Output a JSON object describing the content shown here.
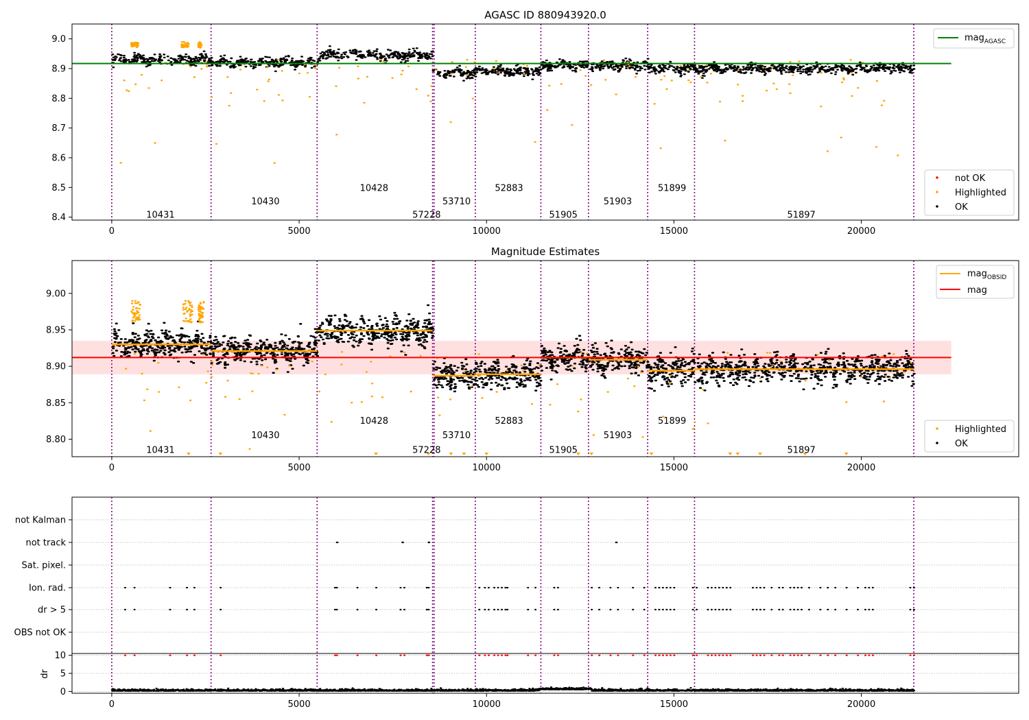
{
  "chart_data": [
    {
      "id": "top",
      "type": "scatter",
      "title": "AGASC ID 880943920.0",
      "xlim": [
        -1060,
        24200
      ],
      "ylim": [
        8.39,
        9.05
      ],
      "xticks": [
        0,
        5000,
        10000,
        15000,
        20000
      ],
      "yticks": [
        8.4,
        8.5,
        8.6,
        8.7,
        8.8,
        8.9,
        9.0
      ],
      "obs_boundaries": [
        0,
        2650,
        5480,
        8560,
        8600,
        9700,
        11450,
        12720,
        14300,
        15550,
        21400
      ],
      "obs_labels": [
        {
          "text": "10431",
          "x": 1300,
          "y": 8.41
        },
        {
          "text": "10430",
          "x": 4100,
          "y": 8.455
        },
        {
          "text": "10428",
          "x": 7000,
          "y": 8.5
        },
        {
          "text": "57228",
          "x": 8400,
          "y": 8.41
        },
        {
          "text": "53710",
          "x": 9200,
          "y": 8.455
        },
        {
          "text": "52883",
          "x": 10600,
          "y": 8.5
        },
        {
          "text": "51905",
          "x": 12050,
          "y": 8.41
        },
        {
          "text": "51903",
          "x": 13500,
          "y": 8.455
        },
        {
          "text": "51899",
          "x": 14950,
          "y": 8.5
        },
        {
          "text": "51897",
          "x": 18400,
          "y": 8.41
        }
      ],
      "mag_agasc": {
        "label": "mag",
        "subscript": "AGASC",
        "value": 8.917,
        "color": "#008000"
      },
      "segment_levels": [
        8.93,
        8.92,
        8.945,
        8.885,
        8.885,
        8.89,
        8.91,
        8.91,
        8.9,
        8.9
      ],
      "series": [
        {
          "name": "not OK",
          "color": "#ff0000"
        },
        {
          "name": "Highlighted",
          "color": "#ffa500"
        },
        {
          "name": "OK",
          "color": "#000000"
        }
      ]
    },
    {
      "id": "mid",
      "type": "scatter",
      "title": "Magnitude Estimates",
      "xlim": [
        -1060,
        24200
      ],
      "ylim": [
        8.776,
        9.045
      ],
      "xticks": [
        0,
        5000,
        10000,
        15000,
        20000
      ],
      "yticks": [
        8.8,
        8.85,
        8.9,
        8.95,
        9.0
      ],
      "ytick_labels": [
        "8.80",
        "8.85",
        "8.90",
        "8.95",
        "9.00"
      ],
      "obs_boundaries": [
        0,
        2650,
        5480,
        8560,
        8600,
        9700,
        11450,
        12720,
        14300,
        15550,
        21400
      ],
      "obs_labels": [
        {
          "text": "10431",
          "x": 1300,
          "y": 8.786
        },
        {
          "text": "10430",
          "x": 4100,
          "y": 8.806
        },
        {
          "text": "10428",
          "x": 7000,
          "y": 8.826
        },
        {
          "text": "57228",
          "x": 8400,
          "y": 8.786
        },
        {
          "text": "53710",
          "x": 9200,
          "y": 8.806
        },
        {
          "text": "52883",
          "x": 10600,
          "y": 8.826
        },
        {
          "text": "51905",
          "x": 12050,
          "y": 8.786
        },
        {
          "text": "51903",
          "x": 13500,
          "y": 8.806
        },
        {
          "text": "51899",
          "x": 14950,
          "y": 8.826
        },
        {
          "text": "51897",
          "x": 18400,
          "y": 8.786
        }
      ],
      "mag": {
        "label": "mag",
        "value": 8.912,
        "band": [
          8.889,
          8.935
        ],
        "color": "#ff0000"
      },
      "mag_obsid": {
        "label": "mag",
        "subscript": "OBSID",
        "color": "#ffa500",
        "levels": [
          8.93,
          8.921,
          8.949,
          8.887,
          8.887,
          8.889,
          8.912,
          8.909,
          8.894,
          8.896
        ]
      },
      "series": [
        {
          "name": "Highlighted",
          "color": "#ffa500"
        },
        {
          "name": "OK",
          "color": "#000000"
        }
      ]
    },
    {
      "id": "flags",
      "type": "scatter",
      "xlim": [
        -1060,
        24200
      ],
      "categories": [
        "not Kalman",
        "not track",
        "Sat. pixel.",
        "Ion. rad.",
        "dr > 5",
        "OBS not OK"
      ],
      "dr_ylim": [
        -0.5,
        10.5
      ],
      "dr_yticks": [
        0,
        5,
        10
      ],
      "dr_ylabel": "dr",
      "xticks": [
        0,
        5000,
        10000,
        15000,
        20000
      ],
      "obs_boundaries": [
        0,
        2650,
        5480,
        8560,
        8600,
        9700,
        11450,
        12720,
        14300,
        15550,
        21400
      ]
    }
  ]
}
